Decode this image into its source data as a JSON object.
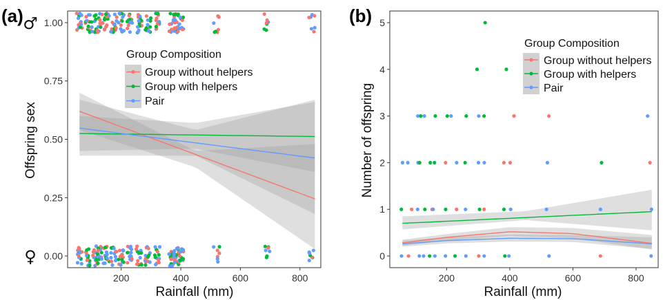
{
  "colors": {
    "group_without_helpers": "#F8766D",
    "group_with_helpers": "#00BA38",
    "pair": "#619CFF",
    "ribbon": "#9a9a9a"
  },
  "chart_data": [
    {
      "panel": "(a)",
      "type": "scatter",
      "ylabel": "Offspring sex",
      "xlabel": "Rainfall (mm)",
      "xlim": [
        20,
        870
      ],
      "ylim": [
        -0.05,
        1.05
      ],
      "x_ticks": [
        200,
        400,
        600,
        800
      ],
      "x_tick_labels": [
        "200",
        "400",
        "600",
        "800"
      ],
      "y_ticks": [
        0,
        0.25,
        0.5,
        0.75,
        1.0
      ],
      "y_tick_labels": [
        "0.00",
        "0.25",
        "0.50",
        "0.75",
        "1.00"
      ],
      "y_symbols": [
        {
          "y": 1.0,
          "text": "♂"
        },
        {
          "y": 0.0,
          "text": "♀"
        }
      ],
      "grid": false,
      "legend": {
        "title": "Group Composition",
        "position": "inside-top-center",
        "entries": [
          "Group without helpers",
          "Group with helpers",
          "Pair"
        ]
      },
      "rainfall_values": [
        60,
        90,
        110,
        130,
        150,
        175,
        200,
        230,
        260,
        290,
        320,
        370,
        385,
        400,
        520,
        690,
        840
      ],
      "jitter_outcomes": [
        0,
        1
      ],
      "series": [
        {
          "name": "Group without helpers",
          "color_key": "group_without_helpers",
          "fit": {
            "x": [
              60,
              850
            ],
            "y": [
              0.62,
              0.245
            ]
          },
          "ci_lower": {
            "x": [
              60,
              450,
              850
            ],
            "y": [
              0.54,
              0.38,
              0.03
            ]
          },
          "ci_upper": {
            "x": [
              60,
              450,
              850
            ],
            "y": [
              0.7,
              0.45,
              0.48
            ]
          }
        },
        {
          "name": "Group with helpers",
          "color_key": "group_with_helpers",
          "fit": {
            "x": [
              60,
              850
            ],
            "y": [
              0.525,
              0.512
            ]
          },
          "ci_lower": {
            "x": [
              60,
              450,
              850
            ],
            "y": [
              0.45,
              0.46,
              0.36
            ]
          },
          "ci_upper": {
            "x": [
              60,
              450,
              850
            ],
            "y": [
              0.6,
              0.57,
              0.66
            ]
          }
        },
        {
          "name": "Pair",
          "color_key": "pair",
          "fit": {
            "x": [
              60,
              850
            ],
            "y": [
              0.548,
              0.42
            ]
          },
          "ci_lower": {
            "x": [
              60,
              450,
              850
            ],
            "y": [
              0.43,
              0.43,
              0.18
            ]
          },
          "ci_upper": {
            "x": [
              60,
              450,
              850
            ],
            "y": [
              0.67,
              0.54,
              0.67
            ]
          }
        }
      ]
    },
    {
      "panel": "(b)",
      "type": "scatter",
      "ylabel": "Number of offspring",
      "xlabel": "Rainfall (mm)",
      "xlim": [
        20,
        870
      ],
      "ylim": [
        -0.25,
        5.25
      ],
      "x_ticks": [
        200,
        400,
        600,
        800
      ],
      "x_tick_labels": [
        "200",
        "400",
        "600",
        "800"
      ],
      "y_ticks": [
        0,
        1,
        2,
        3,
        4,
        5
      ],
      "y_tick_labels": [
        "0",
        "1",
        "2",
        "3",
        "4",
        "5"
      ],
      "grid": false,
      "legend": {
        "title": "Group Composition",
        "position": "inside-top-center",
        "entries": [
          "Group without helpers",
          "Group with helpers",
          "Pair"
        ]
      },
      "points": [
        {
          "x": 320,
          "y": 5,
          "group": "group_with_helpers"
        },
        {
          "x": 300,
          "y": 4,
          "group": "group_with_helpers"
        },
        {
          "x": 385,
          "y": 4,
          "group": "group_with_helpers"
        },
        {
          "x": 110,
          "y": 3,
          "group": "pair"
        },
        {
          "x": 120,
          "y": 3,
          "group": "group_with_helpers"
        },
        {
          "x": 125,
          "y": 3,
          "group": "pair"
        },
        {
          "x": 160,
          "y": 3,
          "group": "group_with_helpers"
        },
        {
          "x": 200,
          "y": 3,
          "group": "group_with_helpers"
        },
        {
          "x": 210,
          "y": 3,
          "group": "pair"
        },
        {
          "x": 260,
          "y": 3,
          "group": "group_with_helpers"
        },
        {
          "x": 300,
          "y": 3,
          "group": "pair"
        },
        {
          "x": 320,
          "y": 3,
          "group": "group_with_helpers"
        },
        {
          "x": 415,
          "y": 3,
          "group": "group_without_helpers"
        },
        {
          "x": 520,
          "y": 3,
          "group": "group_without_helpers"
        },
        {
          "x": 840,
          "y": 3,
          "group": "pair"
        },
        {
          "x": 60,
          "y": 2,
          "group": "pair"
        },
        {
          "x": 80,
          "y": 2,
          "group": "pair"
        },
        {
          "x": 110,
          "y": 2,
          "group": "pair"
        },
        {
          "x": 115,
          "y": 2,
          "group": "group_with_helpers"
        },
        {
          "x": 150,
          "y": 2,
          "group": "group_with_helpers"
        },
        {
          "x": 160,
          "y": 2,
          "group": "group_with_helpers"
        },
        {
          "x": 200,
          "y": 2,
          "group": "group_without_helpers"
        },
        {
          "x": 230,
          "y": 2,
          "group": "pair"
        },
        {
          "x": 260,
          "y": 2,
          "group": "group_with_helpers"
        },
        {
          "x": 300,
          "y": 2,
          "group": "pair"
        },
        {
          "x": 320,
          "y": 2,
          "group": "pair"
        },
        {
          "x": 385,
          "y": 2,
          "group": "group_without_helpers"
        },
        {
          "x": 400,
          "y": 2,
          "group": "group_without_helpers"
        },
        {
          "x": 520,
          "y": 2,
          "group": "pair"
        },
        {
          "x": 690,
          "y": 2,
          "group": "group_with_helpers"
        },
        {
          "x": 845,
          "y": 2,
          "group": "group_without_helpers"
        },
        {
          "x": 60,
          "y": 1,
          "group": "group_with_helpers"
        },
        {
          "x": 90,
          "y": 1,
          "group": "group_without_helpers"
        },
        {
          "x": 110,
          "y": 1,
          "group": "pair"
        },
        {
          "x": 130,
          "y": 1,
          "group": "group_with_helpers"
        },
        {
          "x": 150,
          "y": 1,
          "group": "group_without_helpers"
        },
        {
          "x": 160,
          "y": 1,
          "group": "pair"
        },
        {
          "x": 200,
          "y": 1,
          "group": "group_with_helpers"
        },
        {
          "x": 230,
          "y": 1,
          "group": "group_without_helpers"
        },
        {
          "x": 260,
          "y": 1,
          "group": "pair"
        },
        {
          "x": 300,
          "y": 1,
          "group": "group_with_helpers"
        },
        {
          "x": 320,
          "y": 1,
          "group": "group_without_helpers"
        },
        {
          "x": 385,
          "y": 1,
          "group": "group_with_helpers"
        },
        {
          "x": 400,
          "y": 1,
          "group": "pair"
        },
        {
          "x": 520,
          "y": 1,
          "group": "pair"
        },
        {
          "x": 690,
          "y": 1,
          "group": "pair"
        },
        {
          "x": 845,
          "y": 1,
          "group": "pair"
        },
        {
          "x": 60,
          "y": 0,
          "group": "pair"
        },
        {
          "x": 80,
          "y": 0,
          "group": "group_without_helpers"
        },
        {
          "x": 110,
          "y": 0,
          "group": "pair"
        },
        {
          "x": 125,
          "y": 0,
          "group": "pair"
        },
        {
          "x": 150,
          "y": 0,
          "group": "group_with_helpers"
        },
        {
          "x": 160,
          "y": 0,
          "group": "pair"
        },
        {
          "x": 200,
          "y": 0,
          "group": "pair"
        },
        {
          "x": 230,
          "y": 0,
          "group": "group_with_helpers"
        },
        {
          "x": 260,
          "y": 0,
          "group": "pair"
        },
        {
          "x": 300,
          "y": 0,
          "group": "group_without_helpers"
        },
        {
          "x": 320,
          "y": 0,
          "group": "pair"
        },
        {
          "x": 385,
          "y": 0,
          "group": "group_with_helpers"
        },
        {
          "x": 400,
          "y": 0,
          "group": "pair"
        },
        {
          "x": 520,
          "y": 0,
          "group": "pair"
        },
        {
          "x": 690,
          "y": 0,
          "group": "group_without_helpers"
        },
        {
          "x": 845,
          "y": 0,
          "group": "pair"
        }
      ],
      "series": [
        {
          "name": "Group without helpers",
          "color_key": "group_without_helpers",
          "fit": {
            "x": [
              60,
              200,
              400,
              600,
              850
            ],
            "y": [
              0.28,
              0.4,
              0.52,
              0.48,
              0.27
            ]
          },
          "ci_lower": {
            "x": [
              60,
              200,
              400,
              600,
              850
            ],
            "y": [
              0.22,
              0.33,
              0.43,
              0.38,
              0.14
            ]
          },
          "ci_upper": {
            "x": [
              60,
              200,
              400,
              600,
              850
            ],
            "y": [
              0.35,
              0.47,
              0.62,
              0.6,
              0.45
            ]
          }
        },
        {
          "name": "Group with helpers",
          "color_key": "group_with_helpers",
          "fit": {
            "x": [
              60,
              850
            ],
            "y": [
              0.7,
              0.95
            ]
          },
          "ci_lower": {
            "x": [
              60,
              450,
              850
            ],
            "y": [
              0.57,
              0.77,
              0.55
            ]
          },
          "ci_upper": {
            "x": [
              60,
              450,
              850
            ],
            "y": [
              0.85,
              0.96,
              1.42
            ]
          }
        },
        {
          "name": "Pair",
          "color_key": "pair",
          "fit": {
            "x": [
              60,
              200,
              400,
              600,
              850
            ],
            "y": [
              0.26,
              0.33,
              0.38,
              0.37,
              0.26
            ]
          },
          "ci_lower": {
            "x": [
              60,
              200,
              400,
              600,
              850
            ],
            "y": [
              0.2,
              0.27,
              0.31,
              0.3,
              0.15
            ]
          },
          "ci_upper": {
            "x": [
              60,
              200,
              400,
              600,
              850
            ],
            "y": [
              0.33,
              0.4,
              0.46,
              0.45,
              0.4
            ]
          }
        }
      ]
    }
  ]
}
